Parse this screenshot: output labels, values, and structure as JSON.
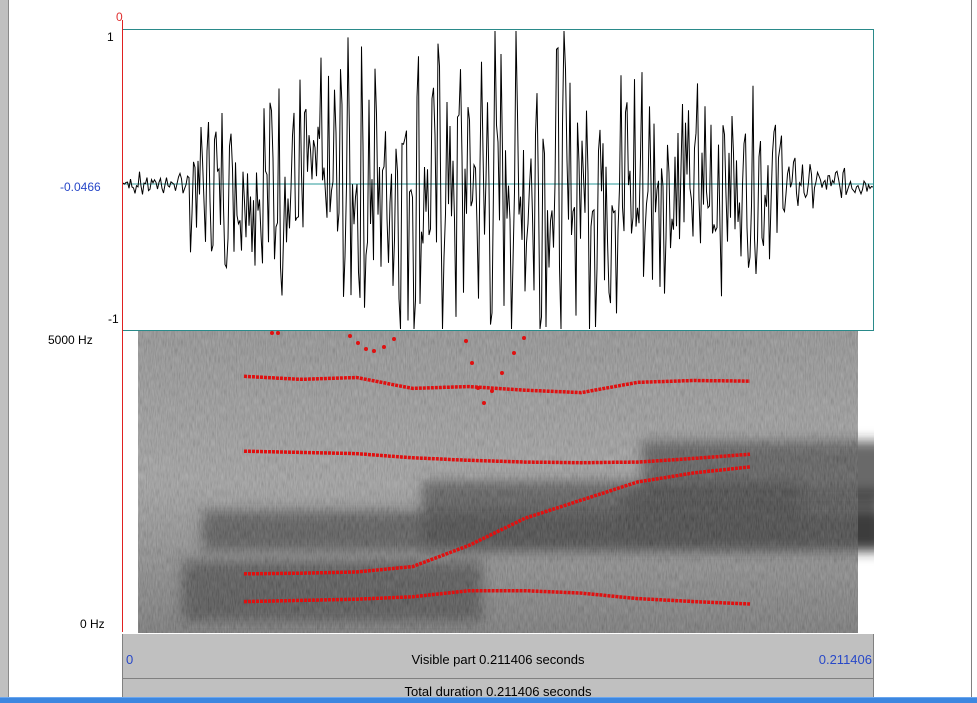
{
  "cursor": {
    "time_label": "0"
  },
  "waveform": {
    "top_value": "1",
    "mid_value": "-0.0466",
    "bottom_value": "-1"
  },
  "spectrogram": {
    "freq_top": "5000 Hz",
    "freq_bottom": "0 Hz",
    "formant_color": "#e01010",
    "formant_tracks": [
      {
        "name": "F1",
        "hz": [
          520,
          540,
          560,
          600,
          700,
          700,
          660,
          570,
          520,
          480
        ]
      },
      {
        "name": "F2",
        "hz": [
          980,
          990,
          1010,
          1100,
          1450,
          1900,
          2200,
          2500,
          2650,
          2750
        ]
      },
      {
        "name": "F3",
        "hz": [
          3010,
          2990,
          2970,
          2900,
          2860,
          2830,
          2820,
          2830,
          2890,
          2960
        ]
      },
      {
        "name": "F4",
        "hz": [
          4250,
          4200,
          4230,
          4050,
          4080,
          4020,
          3980,
          4150,
          4180,
          4170
        ]
      }
    ]
  },
  "time_axis": {
    "start": "0",
    "end": "0.211406",
    "visible_label": "Visible part 0.211406 seconds",
    "total_label": "Total duration 0.211406 seconds"
  }
}
